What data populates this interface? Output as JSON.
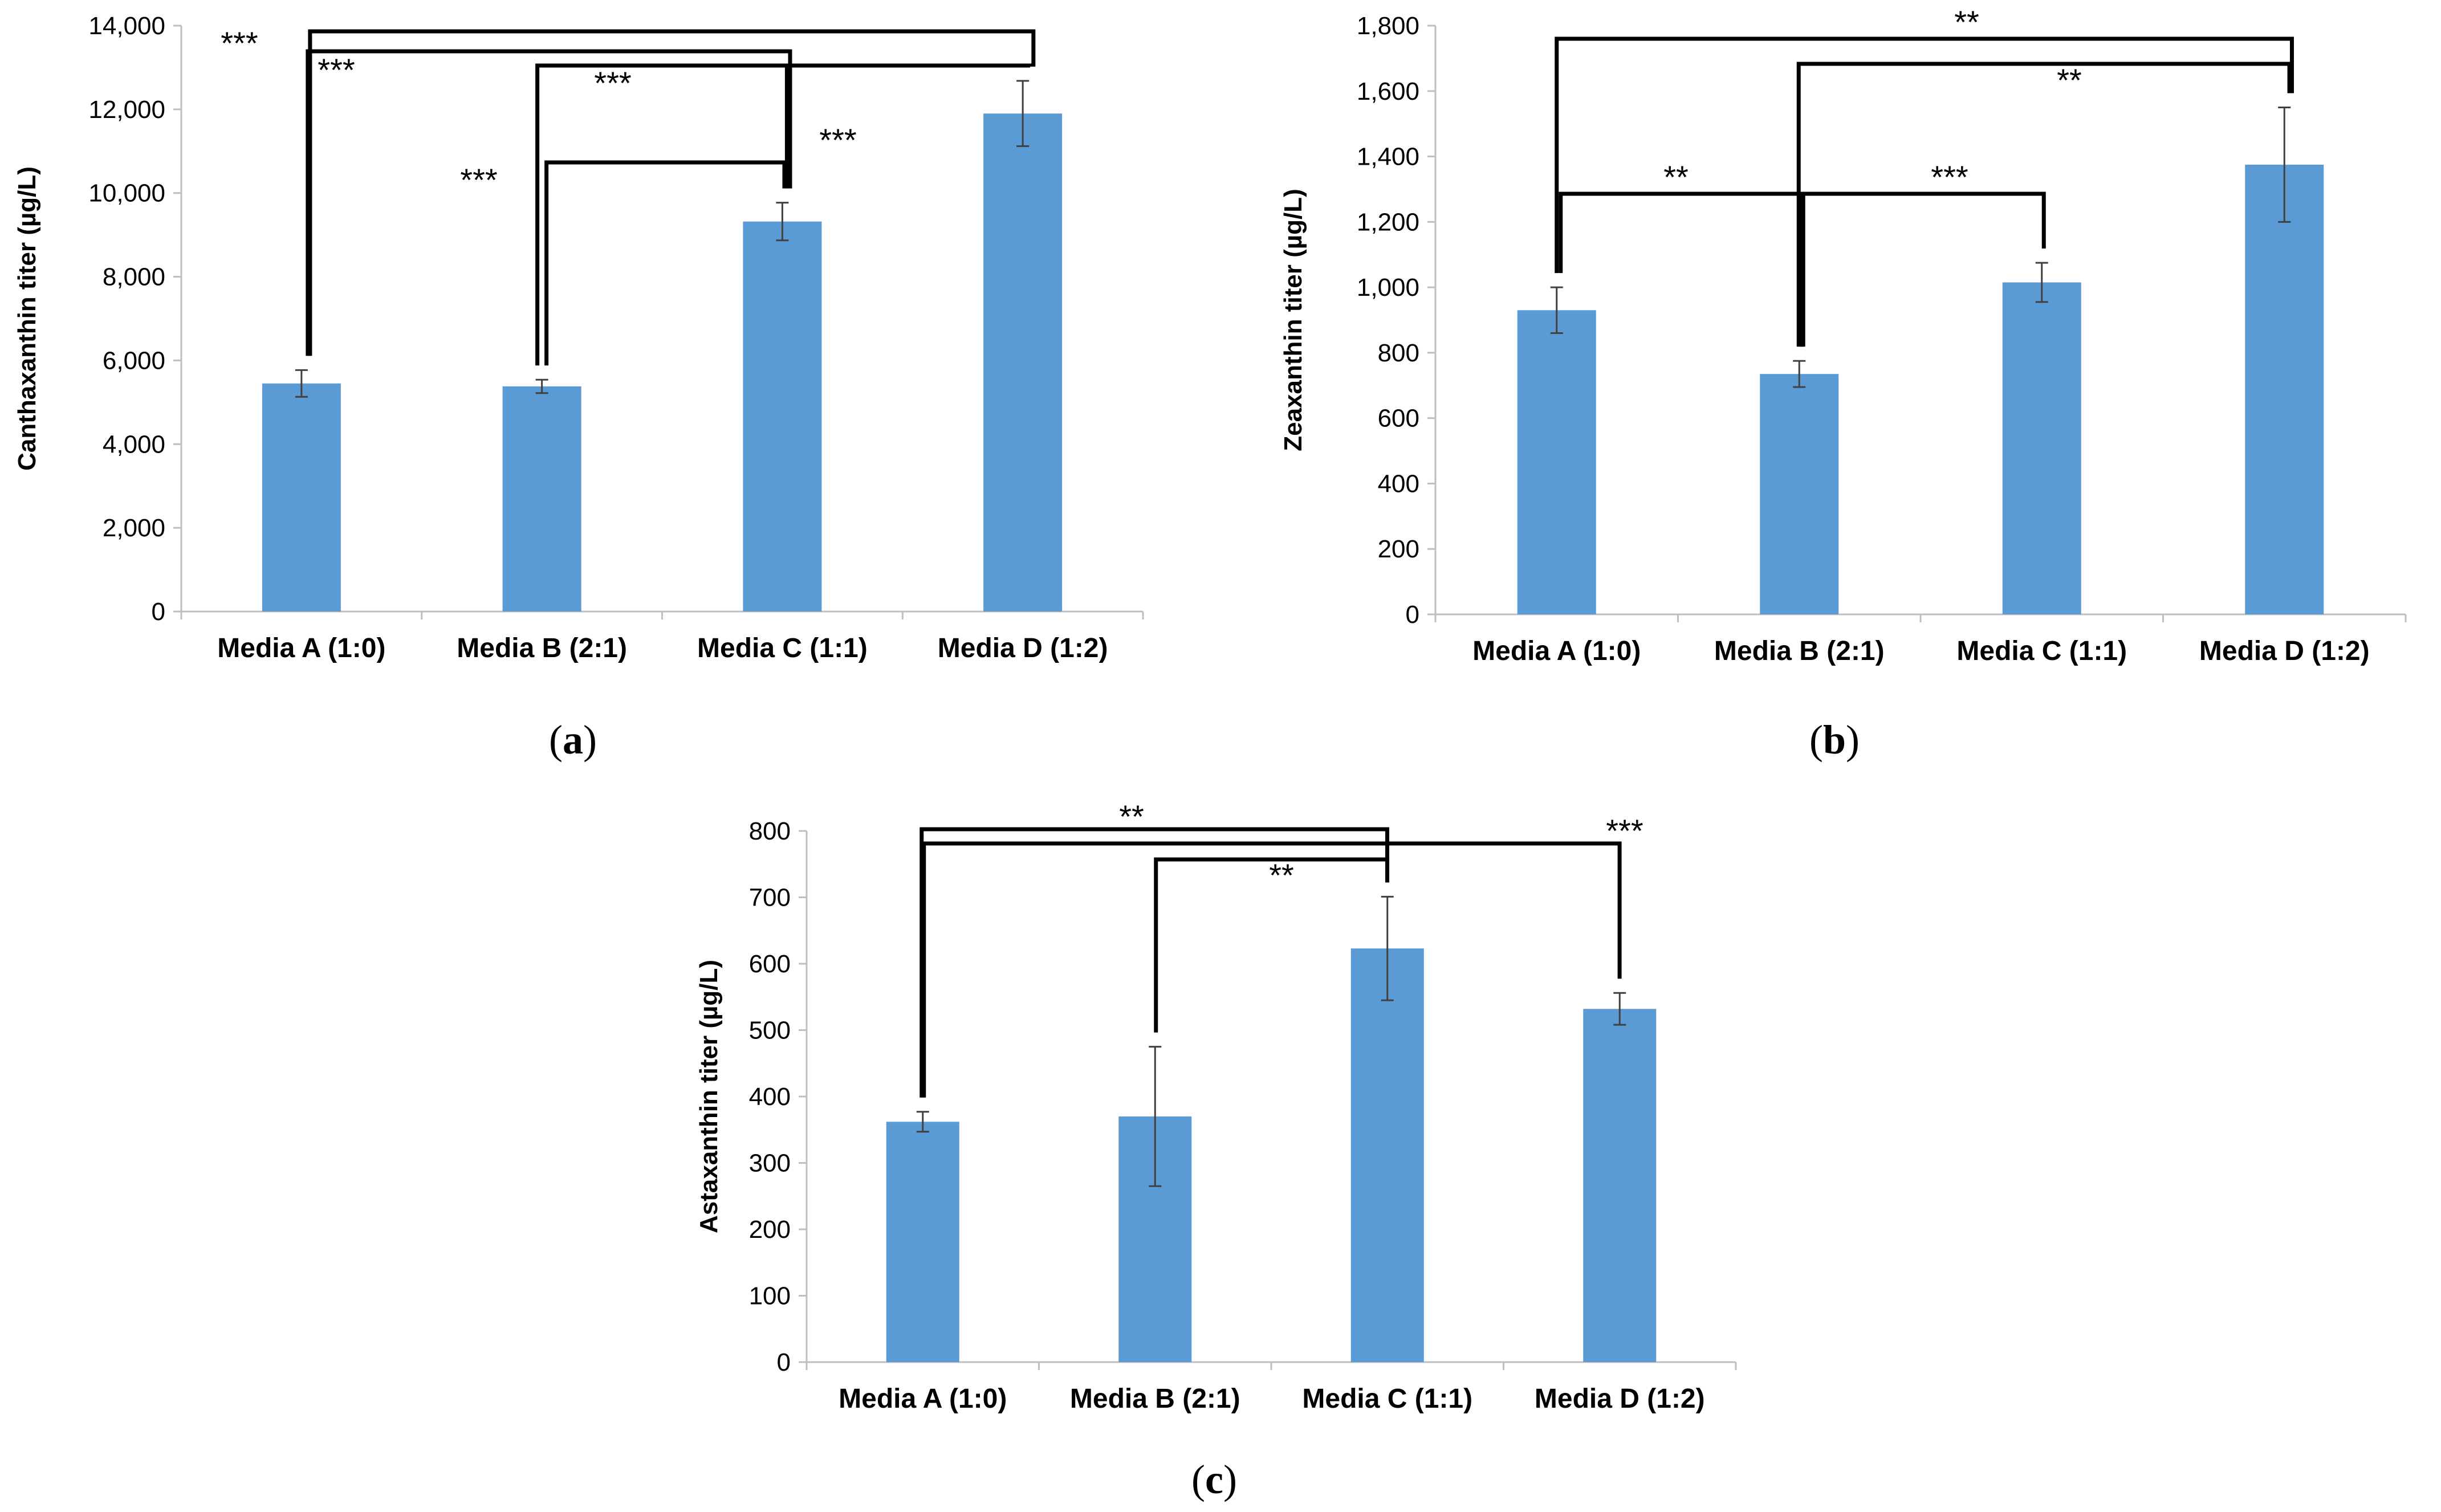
{
  "chart_data": [
    {
      "type": "bar",
      "panel": "a",
      "ylabel": "Canthaxanthin titer (µg/L)",
      "categories": [
        "Media A (1:0)",
        "Media B (2:1)",
        "Media C (1:1)",
        "Media D (1:2)"
      ],
      "values": [
        5450,
        5380,
        9320,
        11900
      ],
      "errors": [
        320,
        160,
        450,
        780
      ],
      "ylim": [
        0,
        14000
      ],
      "ticks": [
        0,
        2000,
        4000,
        6000,
        8000,
        10000,
        12000,
        14000
      ],
      "tick_labels": [
        "0",
        "2,000",
        "4,000",
        "6,000",
        "8,000",
        "10,000",
        "12,000",
        "14,000"
      ],
      "significance": [
        {
          "from": 0,
          "to": 3,
          "stars": "***"
        },
        {
          "from": 0,
          "to": 2,
          "stars": "***"
        },
        {
          "from": 1,
          "to": 3,
          "stars": "***"
        },
        {
          "from": 1,
          "to": 2,
          "stars": "***"
        },
        {
          "from": 2,
          "to": 3,
          "stars": "***"
        }
      ]
    },
    {
      "type": "bar",
      "panel": "b",
      "ylabel": "Zeaxanthin titer (µg/L)",
      "categories": [
        "Media A (1:0)",
        "Media B (2:1)",
        "Media C (1:1)",
        "Media D (1:2)"
      ],
      "values": [
        930,
        735,
        1015,
        1375
      ],
      "errors": [
        70,
        40,
        60,
        175
      ],
      "ylim": [
        0,
        1800
      ],
      "ticks": [
        0,
        200,
        400,
        600,
        800,
        1000,
        1200,
        1400,
        1600,
        1800
      ],
      "tick_labels": [
        "0",
        "200",
        "400",
        "600",
        "800",
        "1,000",
        "1,200",
        "1,400",
        "1,600",
        "1,800"
      ],
      "significance": [
        {
          "from": 0,
          "to": 3,
          "stars": "**"
        },
        {
          "from": 1,
          "to": 3,
          "stars": "**"
        },
        {
          "from": 0,
          "to": 1,
          "stars": "**"
        },
        {
          "from": 1,
          "to": 2,
          "stars": "***"
        }
      ]
    },
    {
      "type": "bar",
      "panel": "c",
      "ylabel": "Astaxanthin titer (µg/L)",
      "categories": [
        "Media A (1:0)",
        "Media B (2:1)",
        "Media C (1:1)",
        "Media D (1:2)"
      ],
      "values": [
        362,
        370,
        623,
        532
      ],
      "errors": [
        15,
        105,
        78,
        24
      ],
      "ylim": [
        0,
        800
      ],
      "ticks": [
        0,
        100,
        200,
        300,
        400,
        500,
        600,
        700,
        800
      ],
      "tick_labels": [
        "0",
        "100",
        "200",
        "300",
        "400",
        "500",
        "600",
        "700",
        "800"
      ],
      "significance": [
        {
          "from": 0,
          "to": 2,
          "stars": "**"
        },
        {
          "from": 0,
          "to": 3,
          "stars": "***"
        },
        {
          "from": 1,
          "to": 2,
          "stars": "**"
        }
      ]
    }
  ],
  "panel_labels": {
    "a": {
      "open": "(",
      "letter": "a",
      "close": ")"
    },
    "b": {
      "open": "(",
      "letter": "b",
      "close": ")"
    },
    "c": {
      "open": "(",
      "letter": "c",
      "close": ")"
    }
  }
}
